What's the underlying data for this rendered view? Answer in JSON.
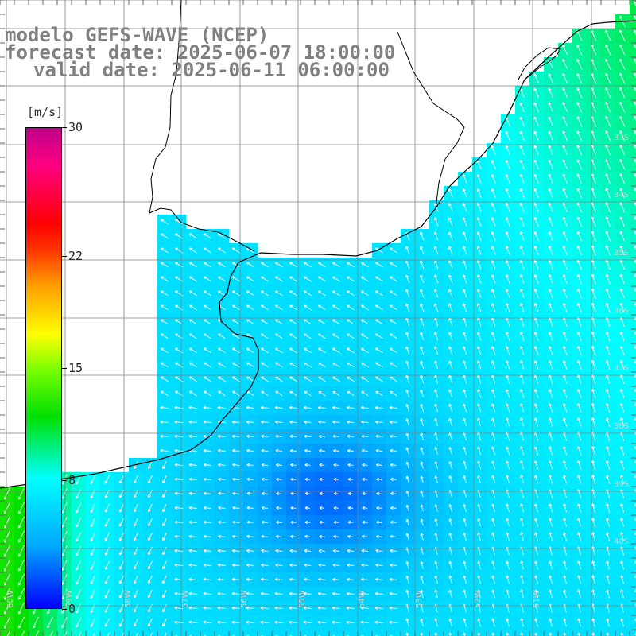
{
  "header": {
    "model_line": "modelo GEFS-WAVE (NCEP)",
    "forecast_line": "forecast date: 2025-06-07 18:00:00",
    "valid_line": "valid date: 2025-06-11 06:00:00"
  },
  "colorbar": {
    "unit": "[m/s]",
    "ticks": [
      "30",
      "22",
      "15",
      "8",
      "0"
    ],
    "tick_values": [
      30,
      22,
      15,
      8,
      0
    ],
    "range": [
      0,
      30
    ]
  },
  "latitude_labels": [
    "33S",
    "34S",
    "35S",
    "36S",
    "37S",
    "38S",
    "39S",
    "40S"
  ],
  "longitude_labels": [
    "60W",
    "59W",
    "58W",
    "57W",
    "56W",
    "55W",
    "54W",
    "53W",
    "52W",
    "51W"
  ],
  "colors": {
    "land": "#ffffff",
    "coastline": "#000000",
    "grid": "#808080",
    "arrow": "#ffffff",
    "title": "#808080"
  }
}
